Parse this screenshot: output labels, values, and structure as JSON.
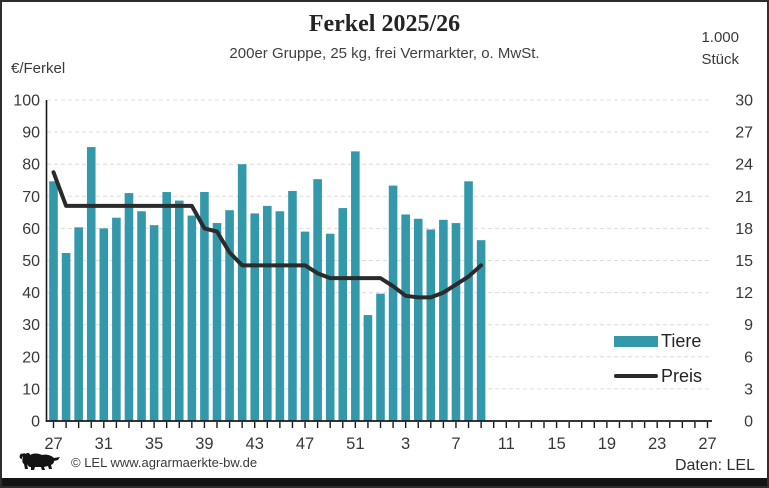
{
  "header": {
    "title": "Ferkel 2025/26",
    "subtitle": "200er Gruppe, 25 kg, frei Vermarkter, o. MwSt.",
    "left_axis_unit": "€/Ferkel",
    "right_axis_unit_line1": "1.000",
    "right_axis_unit_line2": "Stück"
  },
  "legend": {
    "bars": "Tiere",
    "line": "Preis"
  },
  "footer": {
    "copyright": "© LEL www.agrarmaerkte-bw.de",
    "source": "Daten: LEL"
  },
  "icons": {
    "logo": "bw-lion"
  },
  "colors": {
    "bar": "#3498ab",
    "line": "#2b2b2b",
    "grid": "#dcdcdc",
    "axis": "#1a1a1a",
    "tick_text": "#383838"
  },
  "chart_data": {
    "type": "bar+line",
    "title": "Ferkel 2025/26",
    "subtitle": "200er Gruppe, 25 kg, frei Vermarkter, o. MwSt.",
    "left_axis": {
      "label": "€/Ferkel",
      "min": 0,
      "max": 100,
      "step": 10
    },
    "right_axis": {
      "label": "1.000 Stück",
      "min": 0,
      "max": 30,
      "step": 3
    },
    "x_axis": {
      "total_weeks": 53,
      "first_week": 27,
      "tick_every": 1,
      "label_every": 4,
      "tick_labels": [
        "27",
        "31",
        "35",
        "39",
        "43",
        "47",
        "51",
        "3",
        "7",
        "11",
        "15",
        "19",
        "23",
        "27"
      ]
    },
    "grid": "horizontal-dashed",
    "legend_position": "inside-right",
    "bars": {
      "name": "Tiere",
      "axis": "right",
      "unit": "1.000 Stück",
      "weeks": [
        27,
        28,
        29,
        30,
        31,
        32,
        33,
        34,
        35,
        36,
        37,
        38,
        39,
        40,
        41,
        42,
        43,
        44,
        45,
        46,
        47,
        48,
        49,
        50,
        51,
        52,
        1,
        2,
        3,
        4,
        5,
        6,
        7,
        8,
        9
      ],
      "values": [
        22.4,
        15.7,
        18.1,
        25.6,
        18.0,
        19.0,
        21.3,
        19.6,
        18.3,
        21.4,
        20.6,
        19.2,
        21.4,
        18.5,
        19.7,
        24.0,
        19.4,
        20.1,
        19.6,
        21.5,
        17.7,
        22.6,
        17.5,
        19.9,
        25.2,
        9.9,
        11.9,
        22.0,
        19.3,
        18.9,
        17.9,
        18.8,
        18.5,
        22.4,
        16.9
      ]
    },
    "line": {
      "name": "Preis",
      "axis": "left",
      "unit": "€/Ferkel",
      "weeks": [
        27,
        28,
        29,
        30,
        31,
        32,
        33,
        34,
        35,
        36,
        37,
        38,
        39,
        40,
        41,
        42,
        43,
        44,
        45,
        46,
        47,
        48,
        49,
        50,
        51,
        52,
        1,
        2,
        3,
        4,
        5,
        6,
        7,
        8,
        9
      ],
      "values": [
        77.5,
        67,
        67,
        67,
        67,
        67,
        67,
        67,
        67,
        67,
        67,
        67,
        60,
        59,
        52.5,
        48.5,
        48.5,
        48.5,
        48.5,
        48.5,
        48.5,
        46,
        44.5,
        44.5,
        44.5,
        44.5,
        44.5,
        42,
        39,
        38.5,
        38.5,
        40,
        42.5,
        45,
        48.5
      ]
    }
  }
}
